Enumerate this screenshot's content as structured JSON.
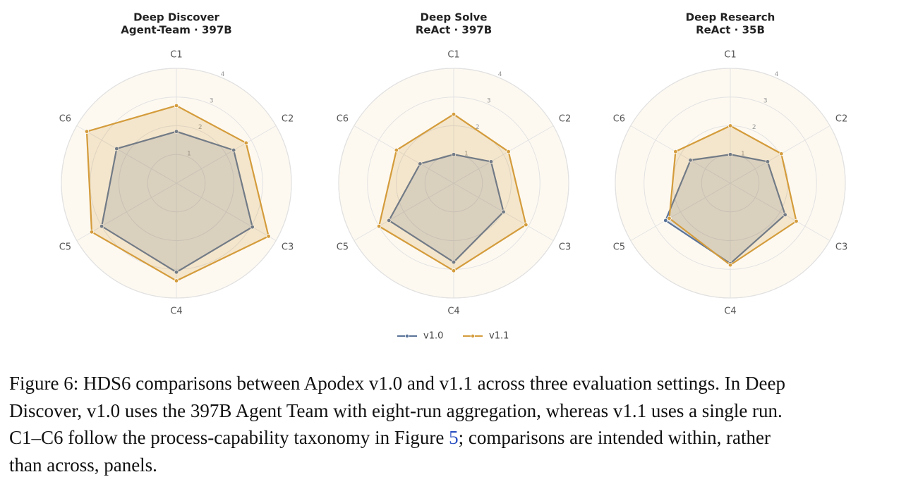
{
  "chart_data": [
    {
      "type": "radar",
      "title": "Deep Discover",
      "subtitle": "Agent-Team · 397B",
      "categories": [
        "C1",
        "C2",
        "C3",
        "C4",
        "C5",
        "C6"
      ],
      "rlim": [
        0,
        4
      ],
      "rticks": [
        1,
        2,
        3,
        4
      ],
      "grid": true,
      "series": [
        {
          "name": "v1.0",
          "color": "#5a7399",
          "values": [
            1.8,
            2.3,
            3.05,
            3.1,
            3.0,
            2.4
          ]
        },
        {
          "name": "v1.1",
          "color": "#d49c3c",
          "values": [
            2.7,
            2.8,
            3.7,
            3.4,
            3.4,
            3.6
          ]
        }
      ]
    },
    {
      "type": "radar",
      "title": "Deep Solve",
      "subtitle": "ReAct · 397B",
      "categories": [
        "C1",
        "C2",
        "C3",
        "C4",
        "C5",
        "C6"
      ],
      "rlim": [
        0,
        4
      ],
      "rticks": [
        1,
        2,
        3,
        4
      ],
      "grid": true,
      "series": [
        {
          "name": "v1.0",
          "color": "#5a7399",
          "values": [
            1.0,
            1.5,
            2.0,
            2.75,
            2.6,
            1.35
          ]
        },
        {
          "name": "v1.1",
          "color": "#d49c3c",
          "values": [
            2.4,
            2.2,
            2.9,
            3.05,
            3.0,
            2.3
          ]
        }
      ]
    },
    {
      "type": "radar",
      "title": "Deep Research",
      "subtitle": "ReAct · 35B",
      "categories": [
        "C1",
        "C2",
        "C3",
        "C4",
        "C5",
        "C6"
      ],
      "rlim": [
        0,
        4
      ],
      "rticks": [
        1,
        2,
        3,
        4
      ],
      "grid": true,
      "series": [
        {
          "name": "v1.0",
          "color": "#5a7399",
          "values": [
            1.0,
            1.5,
            2.2,
            2.8,
            2.6,
            1.6
          ]
        },
        {
          "name": "v1.1",
          "color": "#d49c3c",
          "values": [
            2.0,
            2.05,
            2.65,
            2.85,
            2.45,
            2.2
          ]
        }
      ]
    }
  ],
  "caption": {
    "line1": "Figure 6: HDS6 comparisons between Apodex v1.0 and v1.1 across three evaluation settings. In Deep",
    "line2": "Discover, v1.0 uses the 397B Agent Team with eight-run aggregation, whereas v1.1 uses a single run.",
    "line3_before": "C1–C6 follow the process-capability taxonomy in Figure ",
    "link": "5",
    "line3_after": "; comparisons are intended within, rather",
    "line4": "than across, panels."
  }
}
